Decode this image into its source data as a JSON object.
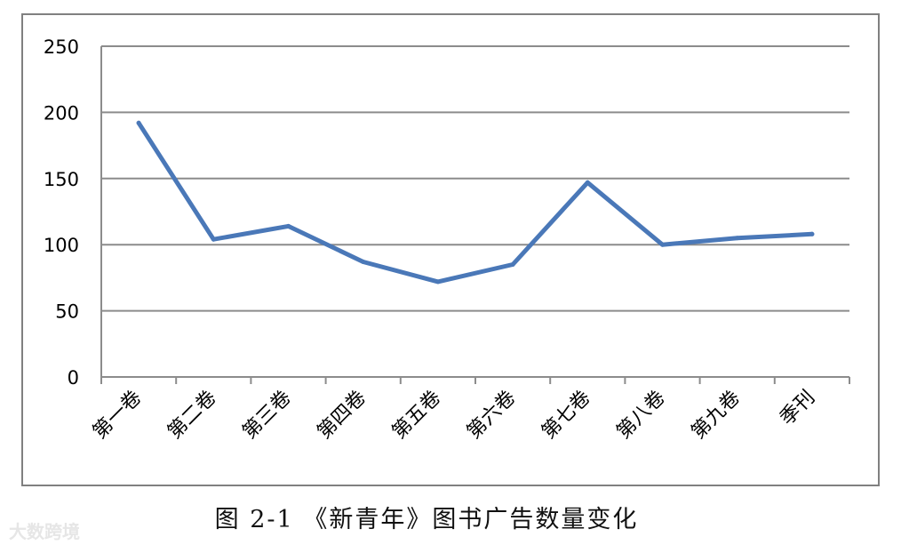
{
  "chart_data": {
    "type": "line",
    "categories": [
      "第一卷",
      "第二卷",
      "第三卷",
      "第四卷",
      "第五卷",
      "第六卷",
      "第七卷",
      "第八卷",
      "第九卷",
      "季刊"
    ],
    "series": [
      {
        "values": [
          192,
          104,
          114,
          87,
          72,
          85,
          147,
          100,
          105,
          108
        ]
      }
    ],
    "yticks": [
      "0",
      "50",
      "100",
      "150",
      "200",
      "250"
    ],
    "ylim": [
      0,
      250
    ],
    "grid": true,
    "legend": "none",
    "line_color": "#4a78b8"
  },
  "caption": "图 2-1 《新青年》图书广告数量变化",
  "watermark": "大数跨境"
}
